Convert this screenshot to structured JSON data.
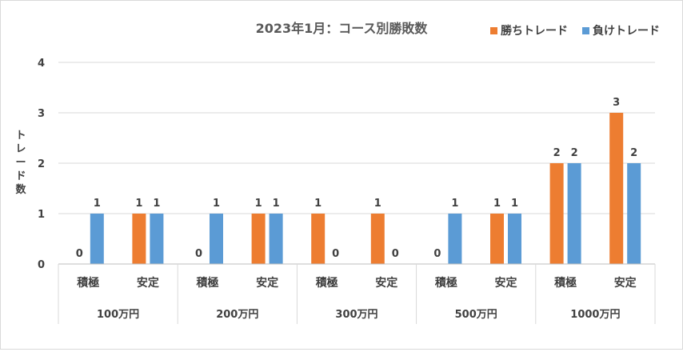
{
  "chart_data": {
    "type": "bar",
    "title": "2023年1月：コース別勝敗数",
    "ylabel": "トレード数",
    "ylim": [
      0,
      4
    ],
    "yticks": [
      "0",
      "1",
      "2",
      "3",
      "4"
    ],
    "grid": true,
    "legend_position": "top-right",
    "groups": [
      {
        "label": "100万円",
        "categories": [
          "積極",
          "安定"
        ]
      },
      {
        "label": "200万円",
        "categories": [
          "積極",
          "安定"
        ]
      },
      {
        "label": "300万円",
        "categories": [
          "積極",
          "安定"
        ]
      },
      {
        "label": "500万円",
        "categories": [
          "積極",
          "安定"
        ]
      },
      {
        "label": "1000万円",
        "categories": [
          "積極",
          "安定"
        ]
      }
    ],
    "series": [
      {
        "name": "勝ちトレード",
        "color": "#ED7D31",
        "values": [
          0,
          1,
          0,
          1,
          1,
          1,
          0,
          1,
          2,
          3
        ]
      },
      {
        "name": "負けトレード",
        "color": "#5B9BD5",
        "values": [
          1,
          1,
          1,
          1,
          0,
          0,
          1,
          1,
          2,
          2
        ]
      }
    ]
  }
}
